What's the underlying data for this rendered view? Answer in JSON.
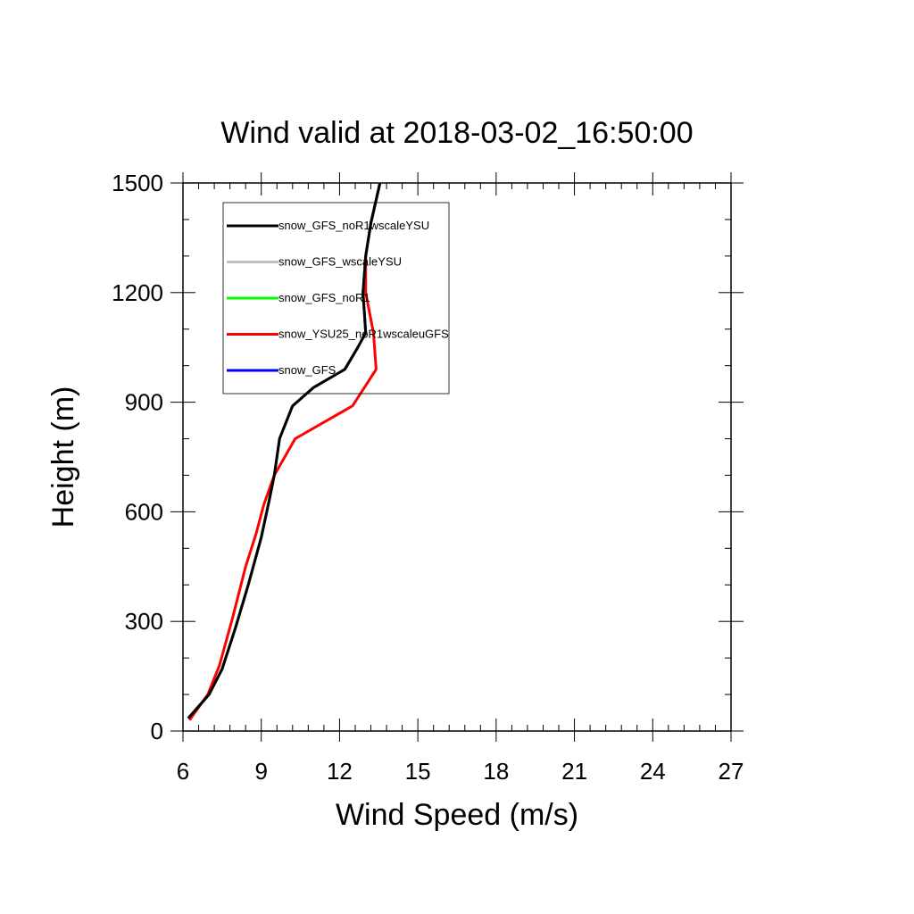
{
  "chart_data": {
    "type": "line",
    "title": "Wind valid at 2018-03-02_16:50:00",
    "xlabel": "Wind Speed (m/s)",
    "ylabel": "Height (m)",
    "xlim": [
      6,
      27
    ],
    "ylim": [
      0,
      1500
    ],
    "x_ticks": [
      6,
      9,
      12,
      15,
      18,
      21,
      24,
      27
    ],
    "y_ticks": [
      0,
      300,
      600,
      900,
      1200,
      1500
    ],
    "grid": false,
    "legend_position": "top-left",
    "series": [
      {
        "name": "snow_GFS_noR1wscaleYSU",
        "color": "#000000",
        "points": [
          [
            6.2,
            35
          ],
          [
            7.0,
            100
          ],
          [
            7.5,
            170
          ],
          [
            8.0,
            280
          ],
          [
            8.5,
            400
          ],
          [
            9.0,
            530
          ],
          [
            9.3,
            630
          ],
          [
            9.5,
            700
          ],
          [
            9.7,
            800
          ],
          [
            10.2,
            890
          ],
          [
            11.0,
            940
          ],
          [
            12.2,
            990
          ],
          [
            12.7,
            1050
          ],
          [
            13.0,
            1090
          ],
          [
            12.9,
            1200
          ],
          [
            13.0,
            1300
          ],
          [
            13.2,
            1390
          ],
          [
            13.55,
            1500
          ]
        ]
      },
      {
        "name": "snow_GFS_wscaleYSU",
        "color": "#c0c0c0",
        "points": [
          [
            6.2,
            35
          ],
          [
            7.0,
            100
          ],
          [
            7.5,
            170
          ],
          [
            8.0,
            280
          ],
          [
            8.5,
            400
          ],
          [
            9.0,
            530
          ],
          [
            9.3,
            630
          ],
          [
            9.5,
            700
          ],
          [
            9.7,
            800
          ],
          [
            10.2,
            890
          ],
          [
            11.0,
            940
          ],
          [
            12.2,
            990
          ],
          [
            12.7,
            1050
          ],
          [
            13.0,
            1090
          ],
          [
            12.9,
            1200
          ],
          [
            13.0,
            1300
          ],
          [
            13.2,
            1390
          ],
          [
            13.55,
            1500
          ]
        ]
      },
      {
        "name": "snow_GFS_noR1",
        "color": "#00ff00",
        "points": [
          [
            6.2,
            35
          ],
          [
            7.0,
            100
          ],
          [
            7.5,
            170
          ],
          [
            8.0,
            280
          ],
          [
            8.5,
            400
          ],
          [
            9.0,
            530
          ],
          [
            9.3,
            630
          ],
          [
            9.5,
            700
          ],
          [
            9.7,
            800
          ],
          [
            10.2,
            890
          ],
          [
            11.0,
            940
          ],
          [
            12.2,
            990
          ],
          [
            12.7,
            1050
          ],
          [
            13.0,
            1090
          ],
          [
            12.9,
            1200
          ],
          [
            13.0,
            1300
          ],
          [
            13.2,
            1390
          ],
          [
            13.55,
            1500
          ]
        ]
      },
      {
        "name": "snow_YSU25_noR1wscaleuGFS",
        "color": "#ff0000",
        "points": [
          [
            6.25,
            30
          ],
          [
            6.95,
            100
          ],
          [
            7.4,
            180
          ],
          [
            7.9,
            310
          ],
          [
            8.4,
            450
          ],
          [
            8.8,
            540
          ],
          [
            9.1,
            620
          ],
          [
            9.5,
            700
          ],
          [
            10.3,
            800
          ],
          [
            12.5,
            890
          ],
          [
            13.4,
            990
          ],
          [
            13.3,
            1090
          ],
          [
            13.0,
            1200
          ],
          [
            13.0,
            1300
          ],
          [
            13.2,
            1390
          ],
          [
            13.55,
            1500
          ]
        ]
      },
      {
        "name": "snow_GFS",
        "color": "#0000ff",
        "points": [
          [
            6.2,
            35
          ],
          [
            7.0,
            100
          ],
          [
            7.5,
            170
          ],
          [
            8.0,
            280
          ],
          [
            8.5,
            400
          ],
          [
            9.0,
            530
          ],
          [
            9.3,
            630
          ],
          [
            9.5,
            700
          ],
          [
            9.7,
            800
          ],
          [
            10.2,
            890
          ],
          [
            11.0,
            940
          ],
          [
            12.2,
            990
          ],
          [
            12.7,
            1050
          ],
          [
            13.0,
            1090
          ],
          [
            12.9,
            1200
          ],
          [
            13.0,
            1300
          ],
          [
            13.2,
            1390
          ],
          [
            13.55,
            1500
          ]
        ]
      }
    ],
    "draw_order": [
      4,
      2,
      1,
      3,
      0
    ]
  }
}
